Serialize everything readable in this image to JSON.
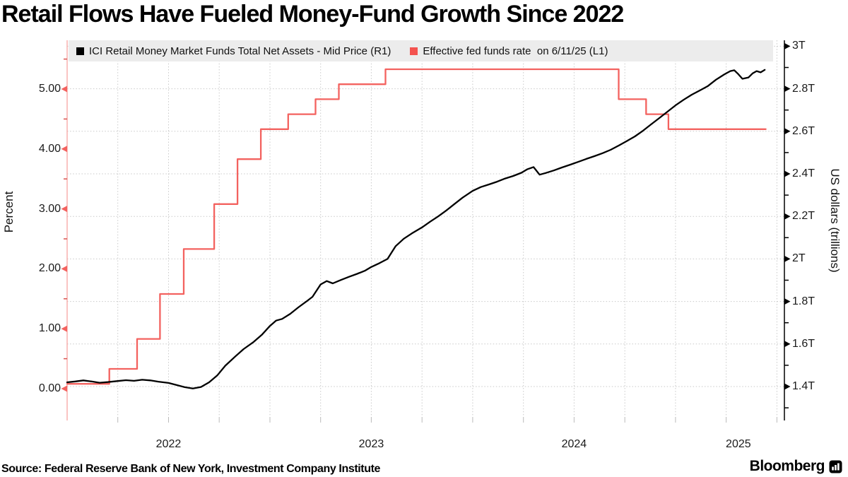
{
  "title": "Retail Flows Have Fueled Money-Fund Growth Since 2022",
  "legend": {
    "items": [
      {
        "label": "ICI Retail Money Market Funds Total Net Assets - Mid Price (R1)",
        "color": "#000000"
      },
      {
        "label": "Effective fed funds rate  on 6/11/25 (L1)",
        "color": "#f4534f"
      }
    ]
  },
  "footer": {
    "source": "Source: Federal Reserve Bank of New York, Investment Company Institute",
    "brand": "Bloomberg",
    "brand_icon": "bar-chart-icon"
  },
  "chart_data": {
    "type": "line",
    "title": "Retail Flows Have Fueled Money-Fund Growth Since 2022",
    "grid": true,
    "legend_position": "top",
    "colors": {
      "grid": "#c9c9c9",
      "left_axis_line": "#f7a5a2",
      "right_axis_line": "#000000",
      "bottom_tick": "#bbbbbb"
    },
    "x_axis": {
      "min": 2022.0,
      "max": 2025.537,
      "grid_start": 2022.25,
      "grid_step": 0.25,
      "grid_end": 2025.5,
      "year_labels": [
        {
          "text": "2022",
          "pos": 2022.5
        },
        {
          "text": "2023",
          "pos": 2023.5
        },
        {
          "text": "2024",
          "pos": 2024.5
        },
        {
          "text": "2025",
          "pos": 2025.31
        }
      ]
    },
    "left_axis": {
      "label": "Percent",
      "side": "left",
      "color": "#f3625f",
      "min": -0.531,
      "max": 5.814,
      "ticks": [
        {
          "v": 0,
          "label": "0.00"
        },
        {
          "v": 1,
          "label": "1.00"
        },
        {
          "v": 2,
          "label": "2.00"
        },
        {
          "v": 3,
          "label": "3.00"
        },
        {
          "v": 4,
          "label": "4.00"
        },
        {
          "v": 5,
          "label": "5.00"
        }
      ],
      "minor_ticks": [
        0.5,
        1.5,
        2.5,
        3.5,
        4.5,
        5.5
      ]
    },
    "right_axis": {
      "label": "US dollars (trillions)",
      "side": "right",
      "color": "#000000",
      "min": 1.2405,
      "max": 3.0279,
      "ticks": [
        {
          "v": 1.4,
          "label": "1.4T"
        },
        {
          "v": 1.6,
          "label": "1.6T"
        },
        {
          "v": 1.8,
          "label": "1.8T"
        },
        {
          "v": 2.0,
          "label": "2T"
        },
        {
          "v": 2.2,
          "label": "2.2T"
        },
        {
          "v": 2.4,
          "label": "2.4T"
        },
        {
          "v": 2.6,
          "label": "2.6T"
        },
        {
          "v": 2.8,
          "label": "2.8T"
        },
        {
          "v": 3.0,
          "label": "3T"
        }
      ],
      "minor_ticks": [
        1.3,
        1.5,
        1.7,
        1.9,
        2.1,
        2.3,
        2.5,
        2.7,
        2.9
      ]
    },
    "series": [
      {
        "name": "Effective fed funds rate  on 6/11/25 (L1)",
        "axis": "L1",
        "unit": "percent",
        "color": "#f3625f",
        "draw": "step",
        "end": 2025.445,
        "points": [
          [
            2022.0,
            0.08
          ],
          [
            2022.208,
            0.33
          ],
          [
            2022.345,
            0.83
          ],
          [
            2022.458,
            1.58
          ],
          [
            2022.575,
            2.33
          ],
          [
            2022.725,
            3.08
          ],
          [
            2022.84,
            3.83
          ],
          [
            2022.955,
            4.33
          ],
          [
            2023.09,
            4.58
          ],
          [
            2023.225,
            4.83
          ],
          [
            2023.34,
            5.08
          ],
          [
            2023.57,
            5.33
          ],
          [
            2024.72,
            4.83
          ],
          [
            2024.855,
            4.58
          ],
          [
            2024.965,
            4.33
          ]
        ]
      },
      {
        "name": "ICI Retail Money Market Funds Total Net Assets - Mid Price (R1)",
        "axis": "R1",
        "unit": "USD trillions",
        "color": "#000000",
        "draw": "line",
        "points": [
          [
            2022.0,
            1.42
          ],
          [
            2022.04,
            1.424
          ],
          [
            2022.08,
            1.429
          ],
          [
            2022.12,
            1.424
          ],
          [
            2022.16,
            1.418
          ],
          [
            2022.2,
            1.421
          ],
          [
            2022.25,
            1.426
          ],
          [
            2022.29,
            1.43
          ],
          [
            2022.33,
            1.427
          ],
          [
            2022.37,
            1.432
          ],
          [
            2022.41,
            1.429
          ],
          [
            2022.45,
            1.423
          ],
          [
            2022.5,
            1.417
          ],
          [
            2022.54,
            1.407
          ],
          [
            2022.58,
            1.397
          ],
          [
            2022.62,
            1.391
          ],
          [
            2022.66,
            1.398
          ],
          [
            2022.7,
            1.42
          ],
          [
            2022.74,
            1.452
          ],
          [
            2022.78,
            1.498
          ],
          [
            2022.83,
            1.542
          ],
          [
            2022.87,
            1.576
          ],
          [
            2022.92,
            1.61
          ],
          [
            2022.96,
            1.643
          ],
          [
            2023.0,
            1.685
          ],
          [
            2023.03,
            1.71
          ],
          [
            2023.06,
            1.718
          ],
          [
            2023.1,
            1.742
          ],
          [
            2023.14,
            1.772
          ],
          [
            2023.18,
            1.8
          ],
          [
            2023.21,
            1.822
          ],
          [
            2023.25,
            1.88
          ],
          [
            2023.28,
            1.896
          ],
          [
            2023.31,
            1.885
          ],
          [
            2023.35,
            1.901
          ],
          [
            2023.39,
            1.916
          ],
          [
            2023.43,
            1.93
          ],
          [
            2023.47,
            1.945
          ],
          [
            2023.5,
            1.962
          ],
          [
            2023.54,
            1.98
          ],
          [
            2023.58,
            2.0
          ],
          [
            2023.6,
            2.03
          ],
          [
            2023.62,
            2.06
          ],
          [
            2023.66,
            2.095
          ],
          [
            2023.7,
            2.12
          ],
          [
            2023.75,
            2.148
          ],
          [
            2023.79,
            2.175
          ],
          [
            2023.83,
            2.2
          ],
          [
            2023.87,
            2.228
          ],
          [
            2023.91,
            2.258
          ],
          [
            2023.95,
            2.288
          ],
          [
            2024.0,
            2.32
          ],
          [
            2024.04,
            2.338
          ],
          [
            2024.08,
            2.35
          ],
          [
            2024.12,
            2.363
          ],
          [
            2024.16,
            2.378
          ],
          [
            2024.2,
            2.39
          ],
          [
            2024.24,
            2.405
          ],
          [
            2024.27,
            2.422
          ],
          [
            2024.3,
            2.432
          ],
          [
            2024.33,
            2.396
          ],
          [
            2024.36,
            2.404
          ],
          [
            2024.4,
            2.416
          ],
          [
            2024.44,
            2.43
          ],
          [
            2024.48,
            2.443
          ],
          [
            2024.52,
            2.456
          ],
          [
            2024.56,
            2.47
          ],
          [
            2024.6,
            2.483
          ],
          [
            2024.64,
            2.497
          ],
          [
            2024.68,
            2.513
          ],
          [
            2024.72,
            2.533
          ],
          [
            2024.76,
            2.554
          ],
          [
            2024.8,
            2.576
          ],
          [
            2024.84,
            2.603
          ],
          [
            2024.88,
            2.633
          ],
          [
            2024.92,
            2.662
          ],
          [
            2024.96,
            2.692
          ],
          [
            2025.0,
            2.722
          ],
          [
            2025.04,
            2.748
          ],
          [
            2025.08,
            2.772
          ],
          [
            2025.12,
            2.792
          ],
          [
            2025.16,
            2.813
          ],
          [
            2025.2,
            2.843
          ],
          [
            2025.24,
            2.867
          ],
          [
            2025.27,
            2.883
          ],
          [
            2025.29,
            2.887
          ],
          [
            2025.31,
            2.868
          ],
          [
            2025.33,
            2.847
          ],
          [
            2025.36,
            2.853
          ],
          [
            2025.38,
            2.872
          ],
          [
            2025.4,
            2.883
          ],
          [
            2025.42,
            2.877
          ],
          [
            2025.44,
            2.889
          ]
        ]
      }
    ]
  }
}
